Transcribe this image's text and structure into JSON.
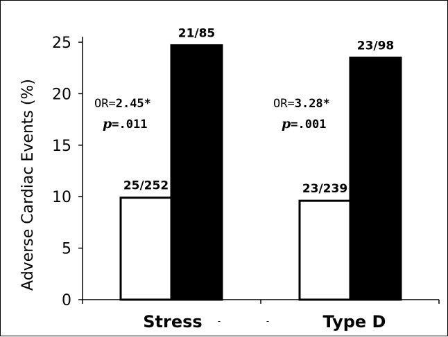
{
  "chart_data": {
    "type": "bar",
    "ylabel": "Adverse Cardiac Events (%)",
    "ylim": [
      0,
      25
    ],
    "yticks": [
      "0",
      "5",
      "10",
      "15",
      "20",
      "25"
    ],
    "categories": [
      "Stress",
      "Type D"
    ],
    "series": [
      {
        "fill": "#ffffff",
        "values": [
          9.9,
          9.6
        ],
        "labels": [
          "25/252",
          "23/239"
        ]
      },
      {
        "fill": "#000000",
        "values": [
          24.7,
          23.5
        ],
        "labels": [
          "21/85",
          "23/98"
        ]
      }
    ],
    "annotations": [
      {
        "or_text": "OR=2.45*",
        "p_label": "p",
        "p_value": "=.011"
      },
      {
        "or_text": "OR=3.28*",
        "p_label": "p",
        "p_value": "=.001"
      }
    ],
    "category_marks": [
      "-",
      "-"
    ],
    "grid": false,
    "legend": "none"
  }
}
